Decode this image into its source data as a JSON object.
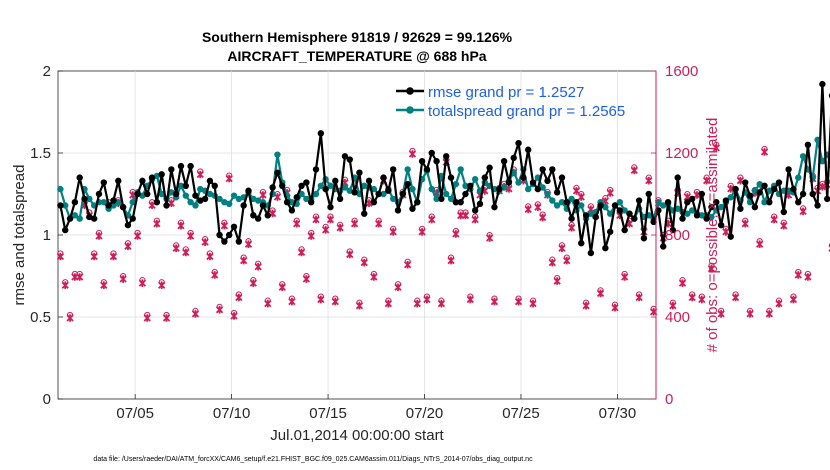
{
  "chart_data": {
    "type": "line",
    "title_line1": "Southern Hemisphere 91819 / 92629 = 99.126%",
    "title_line2": "AIRCRAFT_TEMPERATURE @ 688 hPa",
    "xlabel": "Jul.01,2014 00:00:00 start",
    "ylabel_left": "rmse and totalspread",
    "ylabel_right": "# of obs: o=possible; ×=assimilated",
    "footer": "data file: /Users/raeder/DAI/ATM_forcXX/CAM6_setup/f.e21.FHIST_BGC.f09_025.CAM6assim.011/Diags_NTrS_2014-07/obs_diag_output.nc",
    "x_units": "day of July 2014",
    "xlim": [
      1,
      32
    ],
    "ylim_left": [
      0,
      2
    ],
    "ylim_right": [
      0,
      1600
    ],
    "xticks": [
      {
        "value": 5,
        "label": "07/05"
      },
      {
        "value": 10,
        "label": "07/10"
      },
      {
        "value": 15,
        "label": "07/15"
      },
      {
        "value": 20,
        "label": "07/20"
      },
      {
        "value": 25,
        "label": "07/25"
      },
      {
        "value": 30,
        "label": "07/30"
      }
    ],
    "yticks_left": [
      "0",
      "0.5",
      "1",
      "1.5",
      "2"
    ],
    "yticks_right": [
      "0",
      "400",
      "800",
      "1200",
      "1600"
    ],
    "colors": {
      "rmse": "#000000",
      "spread": "#008080",
      "obs": "#cc1e5a",
      "legend_text": "#1f5fe0"
    },
    "series": [
      {
        "name": "rmse grand pr = 1.2527",
        "axis": "left",
        "x_start": 1.125,
        "x_step": 0.25,
        "values": [
          1.18,
          1.03,
          1.1,
          1.2,
          1.35,
          1.22,
          1.11,
          1.1,
          1.25,
          1.32,
          1.18,
          1.21,
          1.33,
          1.17,
          1.06,
          1.1,
          1.25,
          1.33,
          1.25,
          1.35,
          1.2,
          1.37,
          1.18,
          1.4,
          1.25,
          1.42,
          1.3,
          1.42,
          1.24,
          1.21,
          1.22,
          1.33,
          1.3,
          1.0,
          0.96,
          1.0,
          1.05,
          0.96,
          1.18,
          1.27,
          1.12,
          1.1,
          1.18,
          1.12,
          1.29,
          1.38,
          1.3,
          1.2,
          1.15,
          1.23,
          1.3,
          1.32,
          1.2,
          1.4,
          1.62,
          1.28,
          1.17,
          1.33,
          1.22,
          1.48,
          1.46,
          1.26,
          1.38,
          1.13,
          1.33,
          1.2,
          1.25,
          1.35,
          1.27,
          1.4,
          1.15,
          1.25,
          1.31,
          1.16,
          1.2,
          1.45,
          1.4,
          1.5,
          1.45,
          1.22,
          1.48,
          1.35,
          1.2,
          1.2,
          1.25,
          1.3,
          1.15,
          1.19,
          1.35,
          1.41,
          1.17,
          1.28,
          1.45,
          1.32,
          1.47,
          1.56,
          1.35,
          1.52,
          1.32,
          1.28,
          1.4,
          1.33,
          1.4,
          1.26,
          1.35,
          1.2,
          1.1,
          1.2,
          0.95,
          1.12,
          0.89,
          1.11,
          1.18,
          0.92,
          1.02,
          1.18,
          1.15,
          1.03,
          1.13,
          1.1,
          1.21,
          0.98,
          1.25,
          1.08,
          1.15,
          0.93,
          1.2,
          1.03,
          1.35,
          1.1,
          1.2,
          1.22,
          1.12,
          1.25,
          1.1,
          1.17,
          1.2,
          1.06,
          1.21,
          0.99,
          1.28,
          1.16,
          1.32,
          1.24,
          1.17,
          1.26,
          1.3,
          1.2,
          1.28,
          1.32,
          1.14,
          1.4,
          1.28,
          1.2,
          1.25,
          1.55,
          1.25,
          1.18,
          1.92,
          1.22,
          1.85,
          1.38
        ]
      },
      {
        "name": "totalspread grand pr = 1.2565",
        "axis": "left",
        "x_start": 1.125,
        "x_step": 0.25,
        "values": [
          1.28,
          1.18,
          1.1,
          1.12,
          1.1,
          1.28,
          1.22,
          1.18,
          1.2,
          1.2,
          1.16,
          1.18,
          1.2,
          1.17,
          1.12,
          1.2,
          1.26,
          1.24,
          1.3,
          1.34,
          1.36,
          1.25,
          1.22,
          1.26,
          1.23,
          1.3,
          1.24,
          1.2,
          1.18,
          1.28,
          1.27,
          1.25,
          1.24,
          1.22,
          1.2,
          1.19,
          1.24,
          1.22,
          1.23,
          1.26,
          1.22,
          1.21,
          1.2,
          1.18,
          1.25,
          1.49,
          1.32,
          1.24,
          1.2,
          1.19,
          1.25,
          1.22,
          1.22,
          1.25,
          1.3,
          1.34,
          1.3,
          1.28,
          1.27,
          1.29,
          1.27,
          1.35,
          1.25,
          1.3,
          1.29,
          1.28,
          1.25,
          1.25,
          1.28,
          1.22,
          1.2,
          1.25,
          1.4,
          1.28,
          1.2,
          1.34,
          1.39,
          1.28,
          1.22,
          1.36,
          1.25,
          1.22,
          1.31,
          1.4,
          1.3,
          1.28,
          1.34,
          1.27,
          1.32,
          1.3,
          1.28,
          1.27,
          1.29,
          1.33,
          1.38,
          1.32,
          1.4,
          1.28,
          1.31,
          1.35,
          1.29,
          1.25,
          1.21,
          1.18,
          1.2,
          1.16,
          1.22,
          1.15,
          1.18,
          1.1,
          1.13,
          1.14,
          1.2,
          1.17,
          1.13,
          1.18,
          1.2,
          1.15,
          1.13,
          1.1,
          1.16,
          1.11,
          1.12,
          1.1,
          1.2,
          1.18,
          1.19,
          1.15,
          1.16,
          1.14,
          1.13,
          1.15,
          1.13,
          1.12,
          1.12,
          1.11,
          1.15,
          1.17,
          1.2,
          1.23,
          1.28,
          1.21,
          1.26,
          1.2,
          1.27,
          1.31,
          1.2,
          1.27,
          1.3,
          1.25,
          1.27,
          1.27,
          1.26,
          1.35,
          1.48,
          1.4,
          1.35,
          1.58,
          1.45,
          1.49,
          1.42,
          1.33
        ]
      },
      {
        "name": "# of obs possible",
        "axis": "right",
        "marker": "circle",
        "x_start": 1.125,
        "x_step": 0.25,
        "values": [
          700,
          560,
          400,
          600,
          600,
          950,
          900,
          700,
          800,
          560,
          950,
          700,
          960,
          590,
          750,
          1000,
          800,
          570,
          400,
          950,
          860,
          560,
          400,
          960,
          740,
          850,
          720,
          800,
          420,
          1100,
          770,
          700,
          610,
          440,
          850,
          1080,
          410,
          500,
          680,
          760,
          570,
          650,
          1000,
          470,
          910,
          990,
          550,
          1010,
          480,
          860,
          720,
          590,
          800,
          880,
          490,
          830,
          880,
          480,
          840,
          1060,
          710,
          860,
          460,
          670,
          960,
          600,
          860,
          1070,
          470,
          820,
          550,
          1000,
          660,
          1200,
          470,
          820,
          490,
          880,
          1010,
          470,
          1160,
          680,
          810,
          900,
          900,
          490,
          880,
          1000,
          1020,
          790,
          480,
          1020,
          1040,
          1030,
          1110,
          480,
          1070,
          930,
          470,
          940,
          890,
          1000,
          670,
          580,
          740,
          680,
          840,
          1020,
          990,
          460,
          930,
          900,
          520,
          970,
          1010,
          450,
          900,
          600,
          860,
          1120,
          500,
          820,
          1070,
          430,
          960,
          790,
          860,
          460,
          1010,
          570,
          990,
          500,
          1000,
          490,
          1070,
          640,
          1230,
          420,
          820,
          1030,
          500,
          1070,
          860,
          420,
          1010,
          760,
          1210,
          420,
          880,
          470,
          850,
          1000,
          490,
          610,
          920,
          600,
          1080,
          1020,
          1040,
          1050,
          740,
          560
        ]
      },
      {
        "name": "# of obs assimilated",
        "axis": "right",
        "marker": "cross",
        "x_start": 1.125,
        "x_step": 0.25,
        "values": [
          700,
          560,
          400,
          600,
          600,
          950,
          900,
          700,
          800,
          560,
          950,
          700,
          960,
          590,
          750,
          1000,
          800,
          570,
          400,
          950,
          860,
          560,
          400,
          960,
          740,
          850,
          720,
          800,
          420,
          1100,
          770,
          700,
          610,
          440,
          850,
          1080,
          410,
          500,
          680,
          760,
          570,
          650,
          1000,
          470,
          910,
          990,
          550,
          1010,
          480,
          860,
          720,
          590,
          800,
          880,
          490,
          830,
          880,
          480,
          840,
          1060,
          710,
          860,
          460,
          670,
          960,
          600,
          860,
          1070,
          470,
          820,
          550,
          1000,
          660,
          1200,
          470,
          820,
          490,
          880,
          1010,
          470,
          1160,
          680,
          810,
          900,
          900,
          490,
          880,
          1000,
          1020,
          790,
          480,
          1020,
          1040,
          1030,
          1110,
          480,
          1070,
          930,
          470,
          940,
          890,
          1000,
          670,
          580,
          740,
          680,
          840,
          1020,
          990,
          460,
          930,
          900,
          520,
          970,
          1010,
          450,
          900,
          600,
          860,
          1120,
          500,
          820,
          1070,
          430,
          960,
          790,
          860,
          460,
          1010,
          570,
          990,
          500,
          1000,
          490,
          1070,
          640,
          1230,
          420,
          820,
          1030,
          500,
          1070,
          860,
          420,
          1010,
          760,
          1210,
          420,
          880,
          470,
          850,
          1000,
          490,
          610,
          920,
          600,
          1080,
          1020,
          1040,
          1050,
          740,
          560
        ]
      }
    ],
    "legend_position": "top-right"
  }
}
